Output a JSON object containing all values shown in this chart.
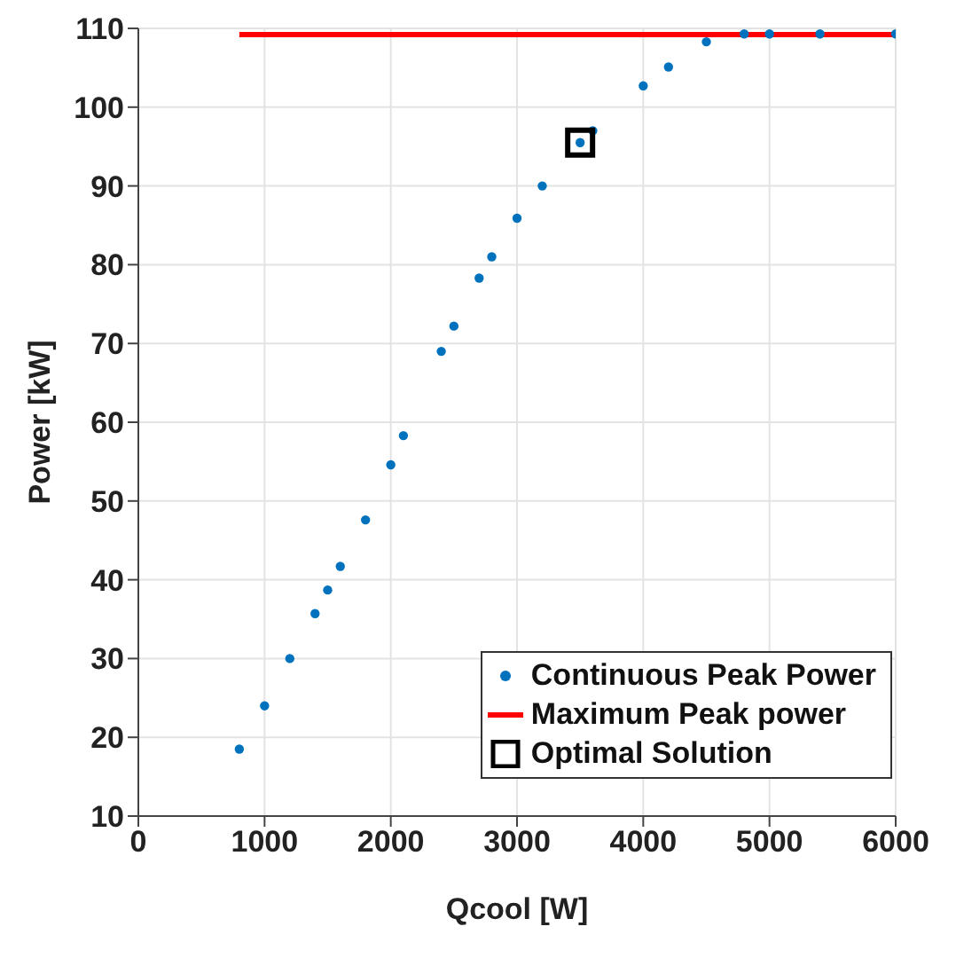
{
  "chart_data": {
    "type": "scatter",
    "xlabel": "Qcool [W]",
    "ylabel": "Power [kW]",
    "xlim": [
      0,
      6000
    ],
    "xticks": [
      0,
      1000,
      2000,
      3000,
      4000,
      5000,
      6000
    ],
    "ylim": [
      10,
      110
    ],
    "yticks": [
      10,
      20,
      30,
      40,
      50,
      60,
      70,
      80,
      90,
      100,
      110
    ],
    "grid": true,
    "legend": "bottom right",
    "series": [
      {
        "name": "Continuous Peak Power",
        "marker": "circle",
        "color": "#0072bd",
        "x": [
          800,
          1000,
          1200,
          1400,
          1500,
          1600,
          1800,
          2000,
          2100,
          2400,
          2500,
          2700,
          2800,
          3000,
          3200,
          3500,
          3600,
          4000,
          4200,
          4500,
          4800,
          5000,
          5400,
          6000
        ],
        "values": [
          18.5,
          24,
          30,
          35.7,
          38.7,
          41.7,
          47.6,
          54.6,
          58.3,
          69,
          72.2,
          78.3,
          81,
          85.9,
          90,
          95.5,
          97,
          102.7,
          105.1,
          108.3,
          109.3,
          109.3,
          109.3,
          109.3
        ]
      },
      {
        "name": "Maximum Peak power",
        "type": "line",
        "marker": "none",
        "line_style": "solid",
        "color": "#ff0000",
        "x": [
          800,
          6000
        ],
        "values": [
          109.2,
          109.2
        ]
      },
      {
        "name": "Optimal Solution",
        "marker": "square",
        "color": "#000000",
        "x": [
          3500
        ],
        "values": [
          95.5
        ]
      }
    ]
  }
}
